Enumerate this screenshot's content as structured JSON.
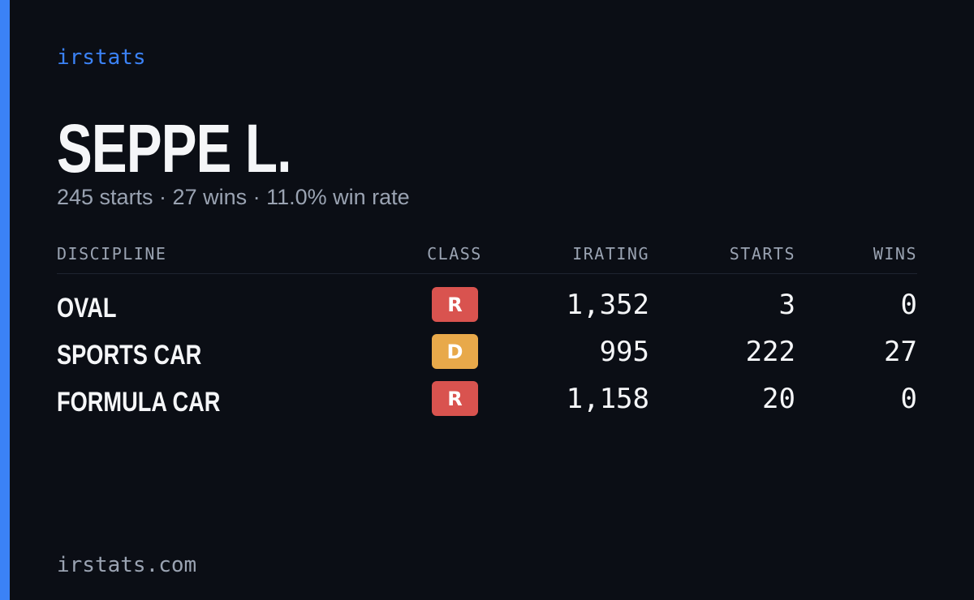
{
  "brand": "irstats",
  "profile": {
    "name": "SEPPE L.",
    "summary": "245 starts · 27 wins · 11.0% win rate"
  },
  "table": {
    "columns": [
      "DISCIPLINE",
      "CLASS",
      "IRATING",
      "STARTS",
      "WINS"
    ],
    "rows": [
      {
        "discipline": "OVAL",
        "class": "R",
        "class_color": "#d9534f",
        "irating": "1,352",
        "starts": "3",
        "wins": "0"
      },
      {
        "discipline": "SPORTS CAR",
        "class": "D",
        "class_color": "#e8a94a",
        "irating": "995",
        "starts": "222",
        "wins": "27"
      },
      {
        "discipline": "FORMULA CAR",
        "class": "R",
        "class_color": "#d9534f",
        "irating": "1,158",
        "starts": "20",
        "wins": "0"
      }
    ]
  },
  "footer": "irstats.com"
}
